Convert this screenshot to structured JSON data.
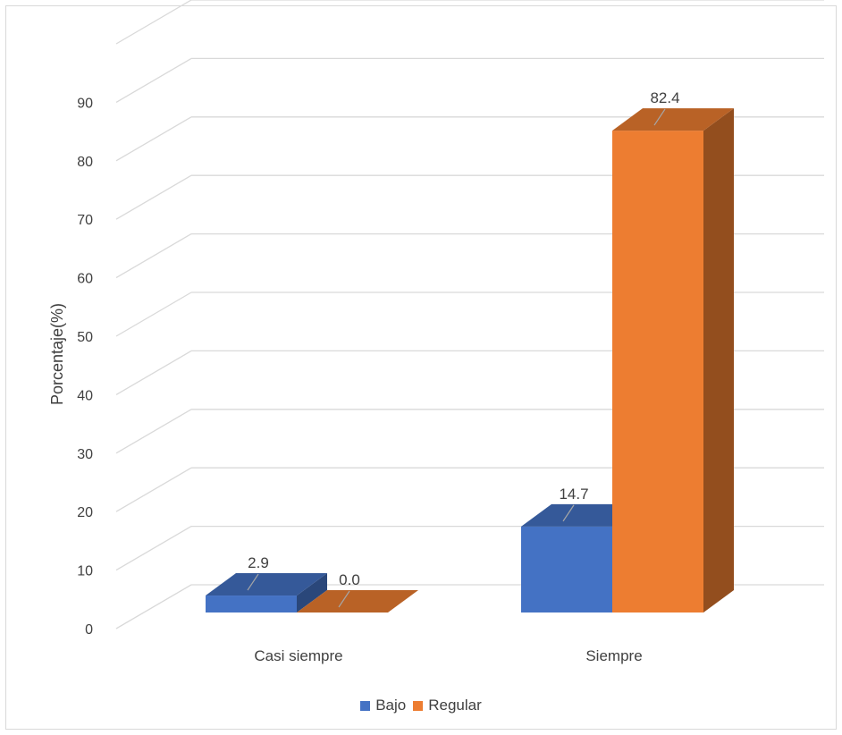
{
  "chart_data": {
    "type": "bar",
    "categories": [
      "Casi siempre",
      "Siempre"
    ],
    "series": [
      {
        "name": "Bajo",
        "values": [
          2.9,
          14.7
        ],
        "color": "#4472C4"
      },
      {
        "name": "Regular",
        "values": [
          0.0,
          82.4
        ],
        "color": "#ED7D31"
      }
    ],
    "data_labels": [
      [
        "2.9",
        "14.7"
      ],
      [
        "0.0",
        "82.4"
      ]
    ],
    "ylabel": "Porcentaje(%)",
    "ylim": [
      0,
      90
    ],
    "yticks": [
      "0",
      "10",
      "20",
      "30",
      "40",
      "50",
      "60",
      "70",
      "80",
      "90"
    ],
    "grid": true,
    "style": "3d-clustered-column",
    "legend_position": "bottom"
  }
}
